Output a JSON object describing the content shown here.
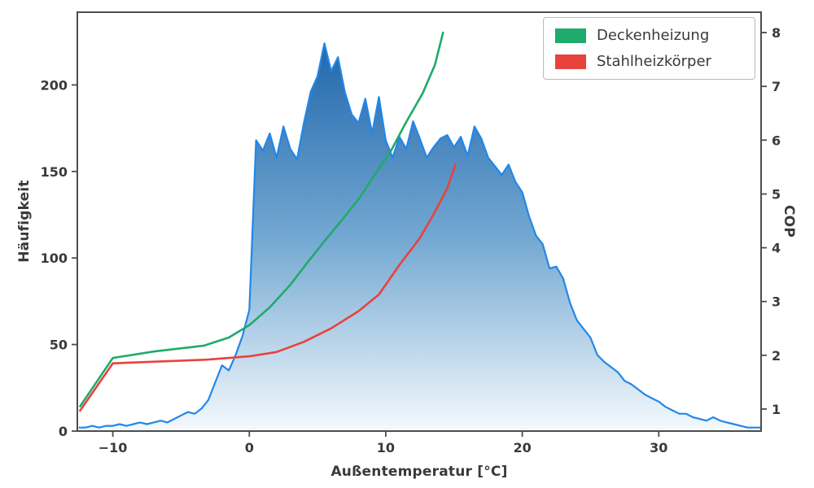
{
  "styles": {
    "text_color": "#3a3a3a",
    "axis_color": "#4d4d4d",
    "legend_border": "#b9b9b9",
    "background": "#ffffff"
  },
  "chart_data": {
    "type": "area",
    "title": "",
    "xlabel": "Außentemperatur [°C]",
    "ylabel_left": "Häufigkeit",
    "ylabel_right": "COP",
    "x_range": [
      -12.6,
      37.5
    ],
    "y_left_range": [
      0,
      242
    ],
    "y_right_range": [
      0.59,
      8.38
    ],
    "x_ticks": [
      -10,
      0,
      10,
      20,
      30
    ],
    "y_left_ticks": [
      0,
      50,
      100,
      150,
      200
    ],
    "y_right_ticks": [
      1,
      2,
      3,
      4,
      5,
      6,
      7,
      8
    ],
    "grid": false,
    "legend_position": "top-right",
    "histogram": {
      "name": "Häufigkeit",
      "axis": "left",
      "line_color": "#2287e8",
      "fill_top": "#155fa8",
      "fill_mid": "#6ba3cf",
      "fill_bottom": "#f4f9fd",
      "x_start": -12.5,
      "x_step": 0.5,
      "values": [
        2,
        2,
        3,
        2,
        3,
        3,
        4,
        3,
        4,
        5,
        4,
        5,
        6,
        5,
        7,
        9,
        11,
        10,
        13,
        18,
        28,
        38,
        35,
        44,
        55,
        70,
        168,
        162,
        172,
        158,
        176,
        163,
        157,
        178,
        196,
        205,
        224,
        208,
        216,
        196,
        183,
        178,
        192,
        172,
        193,
        168,
        158,
        170,
        163,
        179,
        169,
        158,
        164,
        169,
        171,
        164,
        170,
        159,
        176,
        169,
        158,
        153,
        148,
        154,
        144,
        138,
        124,
        113,
        108,
        94,
        95,
        88,
        74,
        64,
        59,
        54,
        44,
        40,
        37,
        34,
        29,
        27,
        24,
        21,
        19,
        17,
        14,
        12,
        10,
        10,
        8,
        7,
        6,
        8,
        6,
        5,
        4,
        3,
        2,
        2,
        2
      ]
    },
    "series": [
      {
        "name": "Deckenheizung",
        "axis": "right",
        "color": "#1fab6b",
        "points": [
          [
            -12.4,
            1.05
          ],
          [
            -10,
            1.95
          ],
          [
            -7,
            2.07
          ],
          [
            -3.3,
            2.18
          ],
          [
            -1.5,
            2.33
          ],
          [
            0,
            2.56
          ],
          [
            1.5,
            2.89
          ],
          [
            3,
            3.31
          ],
          [
            4.4,
            3.77
          ],
          [
            5.6,
            4.15
          ],
          [
            6.8,
            4.52
          ],
          [
            8,
            4.9
          ],
          [
            9.2,
            5.36
          ],
          [
            10.4,
            5.81
          ],
          [
            11.5,
            6.34
          ],
          [
            12.7,
            6.87
          ],
          [
            13.6,
            7.4
          ],
          [
            14.2,
            8.0
          ]
        ]
      },
      {
        "name": "Stahlheizkörper",
        "axis": "right",
        "color": "#e8423d",
        "points": [
          [
            -12.4,
            0.97
          ],
          [
            -10,
            1.85
          ],
          [
            -6,
            1.89
          ],
          [
            -3,
            1.92
          ],
          [
            0,
            1.98
          ],
          [
            2,
            2.06
          ],
          [
            4,
            2.25
          ],
          [
            6,
            2.5
          ],
          [
            8,
            2.82
          ],
          [
            9.5,
            3.13
          ],
          [
            11,
            3.68
          ],
          [
            12.5,
            4.18
          ],
          [
            13.5,
            4.62
          ],
          [
            14.5,
            5.1
          ],
          [
            15.1,
            5.55
          ]
        ]
      }
    ]
  }
}
